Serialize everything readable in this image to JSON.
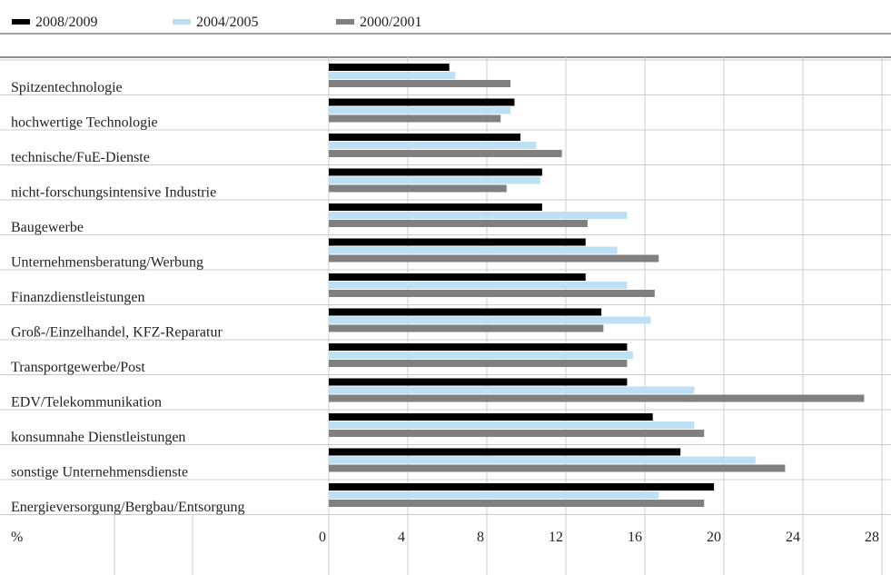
{
  "chart_data": {
    "type": "bar",
    "orientation": "horizontal",
    "categories": [
      "Spitzentechnologie",
      "hochwertige Technologie",
      "technische/FuE-Dienste",
      "nicht-forschungsintensive Industrie",
      "Baugewerbe",
      "Unternehmensberatung/Werbung",
      "Finanzdienstleistungen",
      "Groß-/Einzelhandel, KFZ-Reparatur",
      "Transportgewerbe/Post",
      "EDV/Telekommunikation",
      "konsumnahe Dienstleistungen",
      "sonstige Unternehmensdienste",
      "Energieversorgung/Bergbau/Entsorgung"
    ],
    "series": [
      {
        "name": "2008/2009",
        "color": "#000000",
        "values": [
          6.1,
          9.4,
          9.7,
          10.8,
          10.8,
          13.0,
          13.0,
          13.8,
          15.1,
          15.1,
          16.4,
          17.8,
          19.5
        ]
      },
      {
        "name": "2004/2005",
        "color": "#bde0f5",
        "values": [
          6.4,
          9.2,
          10.5,
          10.7,
          15.1,
          14.6,
          15.1,
          16.3,
          15.4,
          18.5,
          18.5,
          21.6,
          16.7
        ]
      },
      {
        "name": "2000/2001",
        "color": "#808080",
        "values": [
          9.2,
          8.7,
          11.8,
          9.0,
          13.1,
          16.7,
          16.5,
          13.9,
          15.1,
          27.1,
          19.0,
          23.1,
          19.0
        ]
      }
    ],
    "unit_label": "%",
    "xlim": [
      0,
      28
    ],
    "xticks": [
      0,
      4,
      8,
      12,
      16,
      20,
      24,
      28
    ],
    "grid": true
  }
}
